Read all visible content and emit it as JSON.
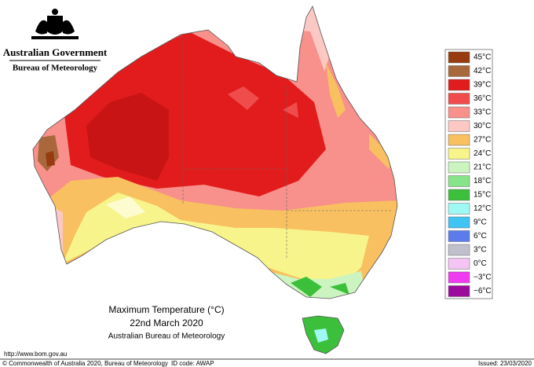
{
  "header": {
    "government": "Australian Government",
    "bureau": "Bureau of Meteorology"
  },
  "legend": {
    "entries": [
      {
        "label": "45°C",
        "color": "#963c10"
      },
      {
        "label": "42°C",
        "color": "#a8683c"
      },
      {
        "label": "39°C",
        "color": "#e21c1c"
      },
      {
        "label": "36°C",
        "color": "#f04c4c"
      },
      {
        "label": "33°C",
        "color": "#f8908c"
      },
      {
        "label": "30°C",
        "color": "#fcc8c4"
      },
      {
        "label": "27°C",
        "color": "#f8c060"
      },
      {
        "label": "24°C",
        "color": "#f8f48c"
      },
      {
        "label": "21°C",
        "color": "#ccf4c0"
      },
      {
        "label": "18°C",
        "color": "#88e488"
      },
      {
        "label": "15°C",
        "color": "#3cc03c"
      },
      {
        "label": "12°C",
        "color": "#a0f8f4"
      },
      {
        "label": "9°C",
        "color": "#40c4f4"
      },
      {
        "label": "6°C",
        "color": "#5c7cec"
      },
      {
        "label": "3°C",
        "color": "#c0c0cc"
      },
      {
        "label": "0°C",
        "color": "#f4c4f4"
      },
      {
        "label": "−3°C",
        "color": "#f03cf0"
      },
      {
        "label": "−6°C",
        "color": "#9c0c9c"
      }
    ]
  },
  "title": {
    "heading": "Maximum Temperature (°C)",
    "date": "22nd March 2020",
    "source": "Australian Bureau of Meteorology"
  },
  "footer": {
    "url": "http://www.bom.gov.au",
    "copyright": "© Commonwealth of Australia 2020, Bureau of Meteorology",
    "id_code": "ID code: AWAP",
    "issued": "Issued: 23/03/2020"
  }
}
